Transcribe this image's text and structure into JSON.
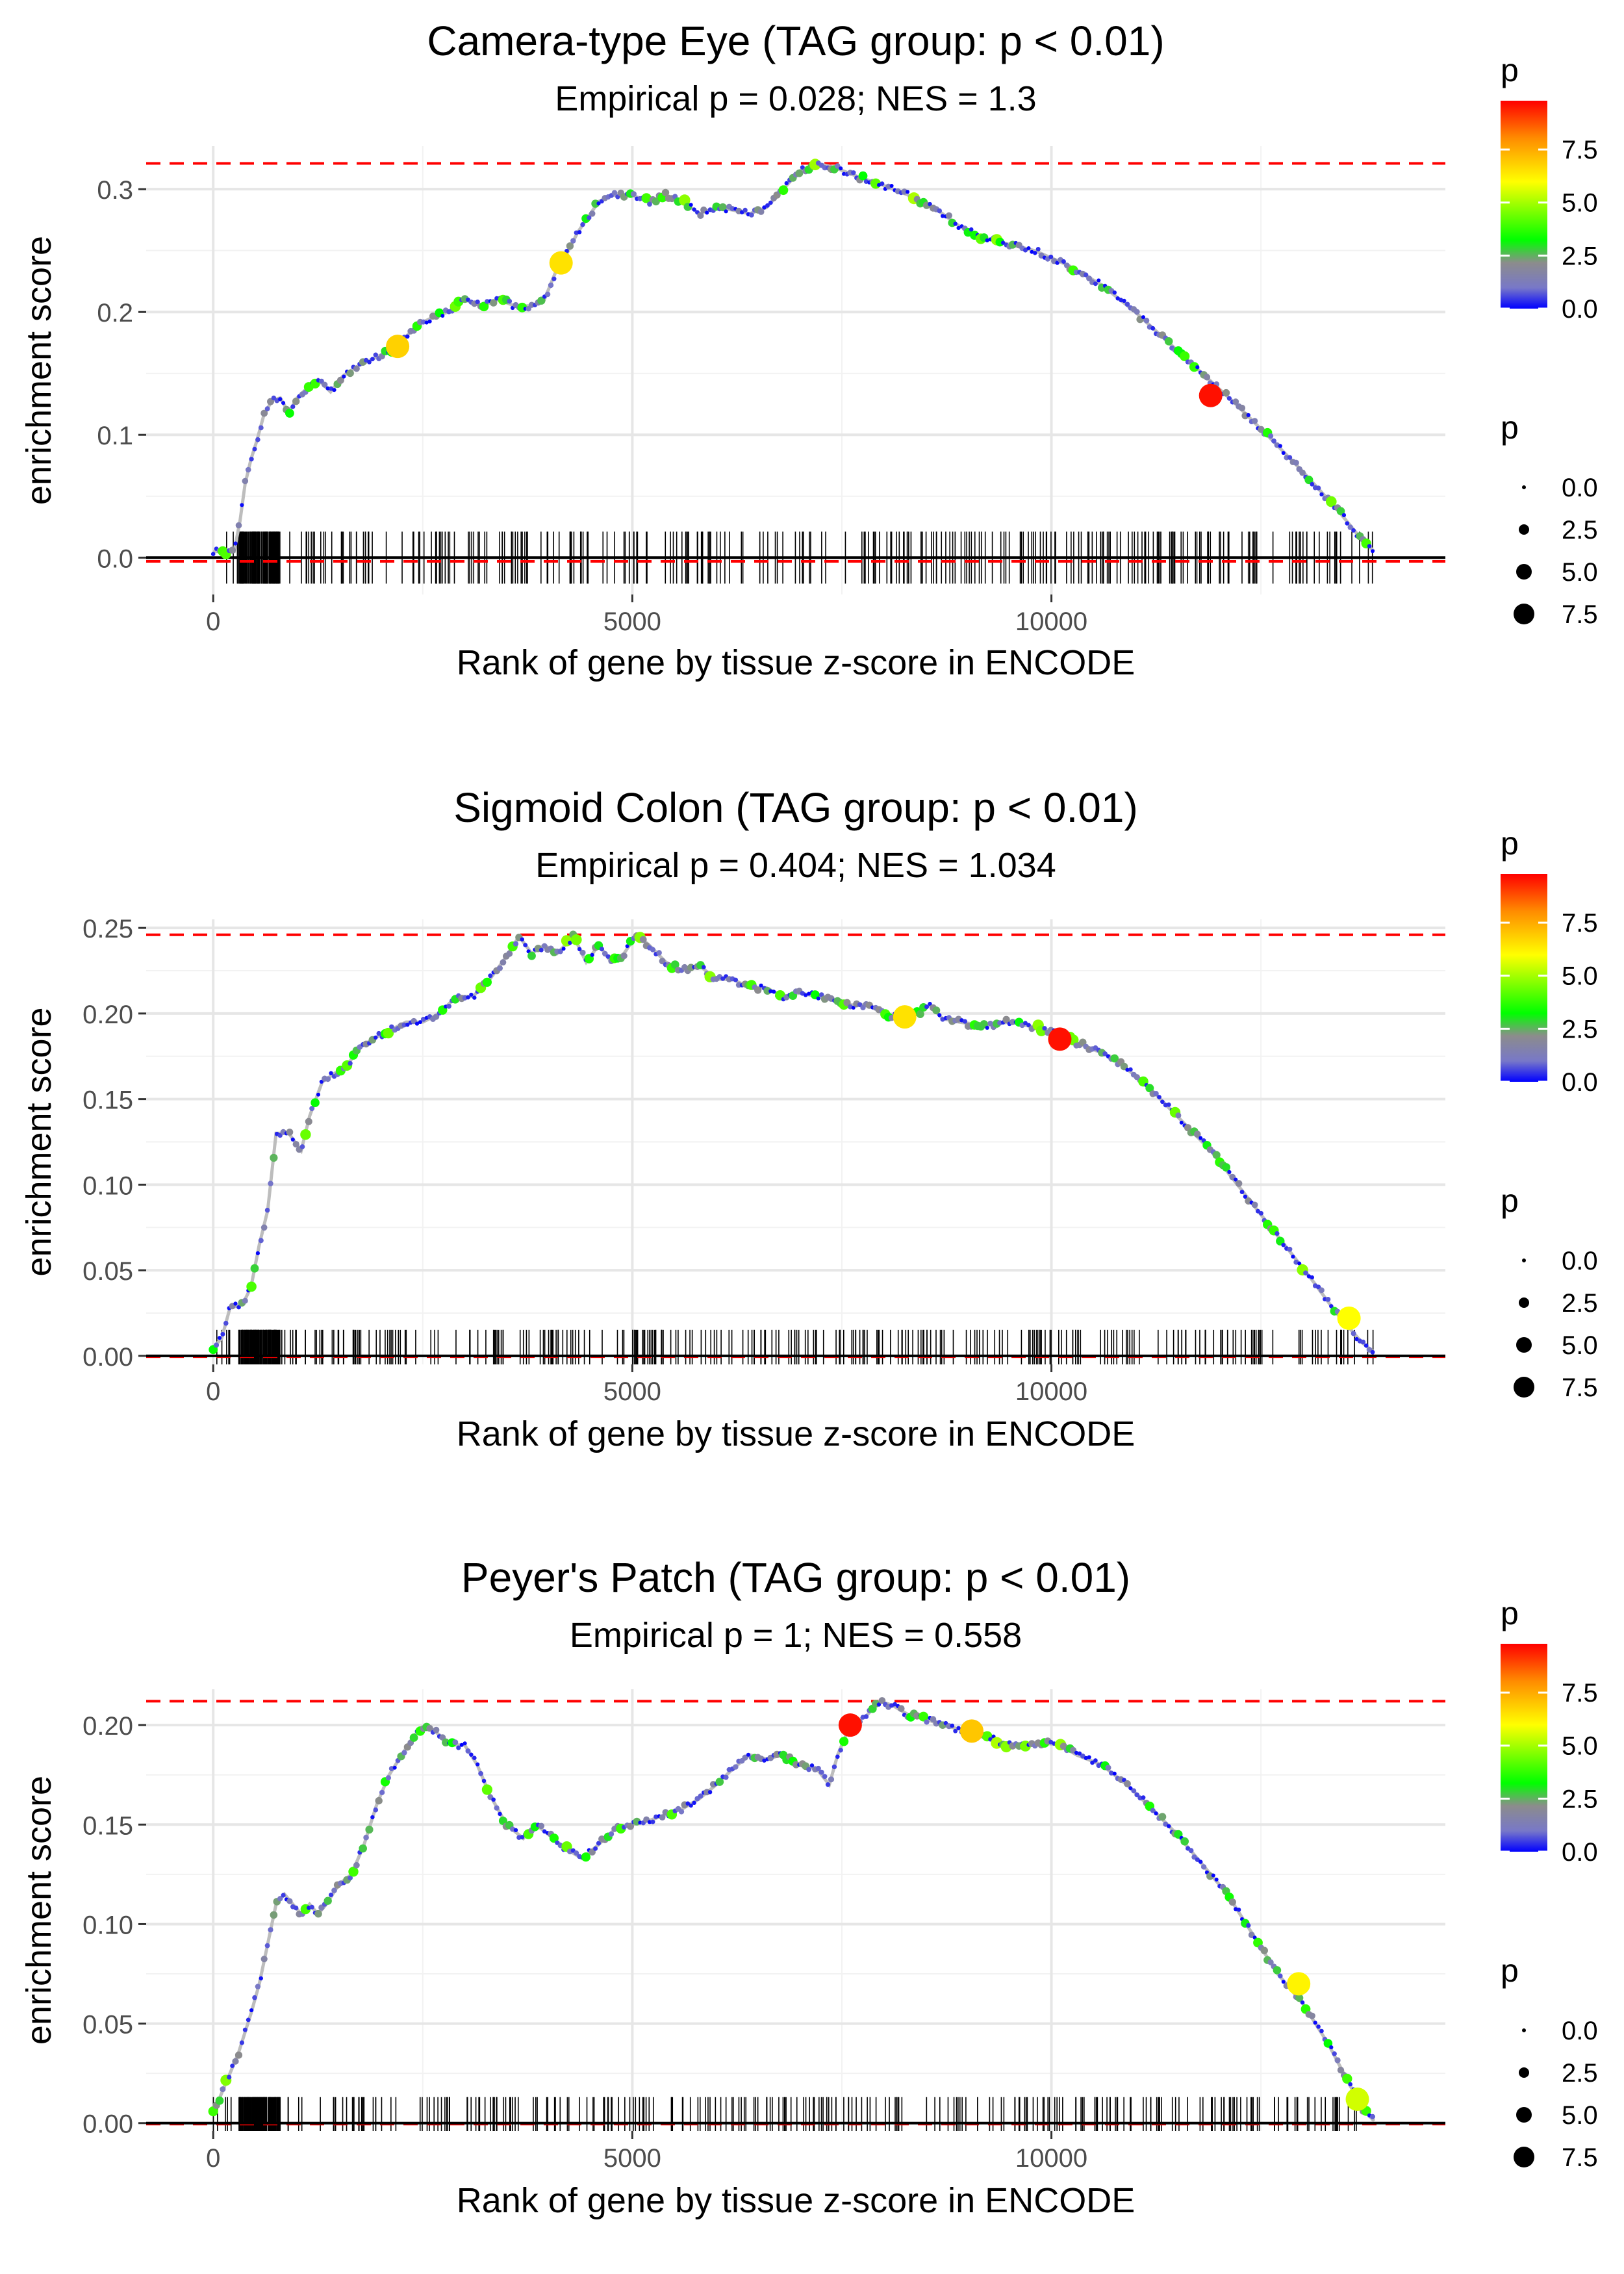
{
  "chart_data": [
    {
      "type": "line",
      "title": "Camera-type Eye (TAG group: p < 0.01)",
      "subtitle": "Empirical p = 0.028; NES = 1.3",
      "xlabel": "Rank of gene by tissue z-score in ENCODE",
      "ylabel": "enrichment score",
      "xlim": [
        -800,
        14700
      ],
      "ylim": [
        -0.03,
        0.335
      ],
      "xticks": [
        0,
        5000,
        10000
      ],
      "xtick_labels": [
        "0",
        "5000",
        "10000"
      ],
      "yticks": [
        0,
        0.1,
        0.2,
        0.3
      ],
      "ytick_labels": [
        "0.0",
        "0.1",
        "0.2",
        "0.3"
      ],
      "max_es": 0.321,
      "min_es": -0.003,
      "n_genes": 13850,
      "curve": [
        [
          0,
          0.005
        ],
        [
          250,
          0.005
        ],
        [
          320,
          0.03
        ],
        [
          380,
          0.06
        ],
        [
          450,
          0.08
        ],
        [
          520,
          0.095
        ],
        [
          600,
          0.115
        ],
        [
          700,
          0.128
        ],
        [
          800,
          0.13
        ],
        [
          900,
          0.118
        ],
        [
          1000,
          0.13
        ],
        [
          1150,
          0.14
        ],
        [
          1250,
          0.145
        ],
        [
          1400,
          0.135
        ],
        [
          1550,
          0.148
        ],
        [
          1700,
          0.155
        ],
        [
          1850,
          0.16
        ],
        [
          2000,
          0.165
        ],
        [
          2150,
          0.17
        ],
        [
          2300,
          0.18
        ],
        [
          2450,
          0.19
        ],
        [
          2600,
          0.195
        ],
        [
          2800,
          0.2
        ],
        [
          3000,
          0.21
        ],
        [
          3200,
          0.205
        ],
        [
          3400,
          0.21
        ],
        [
          3600,
          0.205
        ],
        [
          3800,
          0.205
        ],
        [
          3950,
          0.21
        ],
        [
          4100,
          0.235
        ],
        [
          4200,
          0.245
        ],
        [
          4350,
          0.265
        ],
        [
          4500,
          0.28
        ],
        [
          4600,
          0.29
        ],
        [
          4750,
          0.295
        ],
        [
          5000,
          0.295
        ],
        [
          5200,
          0.29
        ],
        [
          5400,
          0.295
        ],
        [
          5600,
          0.29
        ],
        [
          5800,
          0.28
        ],
        [
          6000,
          0.285
        ],
        [
          6200,
          0.283
        ],
        [
          6400,
          0.28
        ],
        [
          6600,
          0.285
        ],
        [
          6800,
          0.3
        ],
        [
          7000,
          0.315
        ],
        [
          7200,
          0.321
        ],
        [
          7400,
          0.318
        ],
        [
          7700,
          0.31
        ],
        [
          8000,
          0.303
        ],
        [
          8300,
          0.295
        ],
        [
          8600,
          0.285
        ],
        [
          8900,
          0.27
        ],
        [
          9200,
          0.26
        ],
        [
          9500,
          0.255
        ],
        [
          9800,
          0.25
        ],
        [
          10200,
          0.238
        ],
        [
          10600,
          0.222
        ],
        [
          11000,
          0.2
        ],
        [
          11400,
          0.175
        ],
        [
          11800,
          0.15
        ],
        [
          12200,
          0.125
        ],
        [
          12600,
          0.098
        ],
        [
          13000,
          0.07
        ],
        [
          13400,
          0.04
        ],
        [
          13700,
          0.015
        ],
        [
          13850,
          0.005
        ]
      ],
      "highlight_points": [
        {
          "x": 2200,
          "y": 0.172,
          "p": 6.8
        },
        {
          "x": 4150,
          "y": 0.24,
          "p": 6.5
        },
        {
          "x": 11900,
          "y": 0.132,
          "p": 9.6
        }
      ],
      "color_legend": {
        "title": "p",
        "ticks": [
          "0.0",
          "2.5",
          "5.0",
          "7.5"
        ],
        "tick_values": [
          0,
          2.5,
          5,
          7.5
        ],
        "max": 9.8
      },
      "size_legend": {
        "title": "p",
        "labels": [
          "0.0",
          "2.5",
          "5.0",
          "7.5"
        ]
      },
      "rug_seed": 11
    },
    {
      "type": "line",
      "title": "Sigmoid Colon (TAG group: p < 0.01)",
      "subtitle": "Empirical p = 0.404; NES = 1.034",
      "xlabel": "Rank of gene by tissue z-score in ENCODE",
      "ylabel": "enrichment score",
      "xlim": [
        -800,
        14700
      ],
      "ylim": [
        -0.005,
        0.255
      ],
      "xticks": [
        0,
        5000,
        10000
      ],
      "xtick_labels": [
        "0",
        "5000",
        "10000"
      ],
      "yticks": [
        0,
        0.05,
        0.1,
        0.15,
        0.2,
        0.25
      ],
      "ytick_labels": [
        "0.00",
        "0.05",
        "0.10",
        "0.15",
        "0.20",
        "0.25"
      ],
      "max_es": 0.246,
      "min_es": -0.0005,
      "n_genes": 13850,
      "curve": [
        [
          0,
          0.005
        ],
        [
          100,
          0.01
        ],
        [
          200,
          0.028
        ],
        [
          350,
          0.03
        ],
        [
          450,
          0.04
        ],
        [
          550,
          0.065
        ],
        [
          650,
          0.085
        ],
        [
          750,
          0.13
        ],
        [
          900,
          0.13
        ],
        [
          1050,
          0.12
        ],
        [
          1150,
          0.14
        ],
        [
          1300,
          0.16
        ],
        [
          1450,
          0.165
        ],
        [
          1600,
          0.17
        ],
        [
          1750,
          0.18
        ],
        [
          1900,
          0.185
        ],
        [
          2100,
          0.19
        ],
        [
          2300,
          0.195
        ],
        [
          2500,
          0.195
        ],
        [
          2700,
          0.2
        ],
        [
          2900,
          0.21
        ],
        [
          3100,
          0.21
        ],
        [
          3300,
          0.22
        ],
        [
          3450,
          0.23
        ],
        [
          3650,
          0.245
        ],
        [
          3800,
          0.235
        ],
        [
          3950,
          0.24
        ],
        [
          4100,
          0.235
        ],
        [
          4300,
          0.245
        ],
        [
          4450,
          0.23
        ],
        [
          4600,
          0.24
        ],
        [
          4750,
          0.23
        ],
        [
          4900,
          0.235
        ],
        [
          5050,
          0.246
        ],
        [
          5200,
          0.24
        ],
        [
          5400,
          0.23
        ],
        [
          5600,
          0.225
        ],
        [
          5800,
          0.228
        ],
        [
          6000,
          0.22
        ],
        [
          6200,
          0.22
        ],
        [
          6400,
          0.215
        ],
        [
          6600,
          0.215
        ],
        [
          6800,
          0.21
        ],
        [
          7000,
          0.212
        ],
        [
          7200,
          0.21
        ],
        [
          7400,
          0.208
        ],
        [
          7600,
          0.205
        ],
        [
          7800,
          0.205
        ],
        [
          8000,
          0.2
        ],
        [
          8200,
          0.198
        ],
        [
          8400,
          0.2
        ],
        [
          8550,
          0.205
        ],
        [
          8700,
          0.197
        ],
        [
          8900,
          0.195
        ],
        [
          9200,
          0.193
        ],
        [
          9500,
          0.195
        ],
        [
          9800,
          0.192
        ],
        [
          10000,
          0.19
        ],
        [
          10300,
          0.183
        ],
        [
          10700,
          0.175
        ],
        [
          11100,
          0.16
        ],
        [
          11500,
          0.14
        ],
        [
          11900,
          0.12
        ],
        [
          12300,
          0.095
        ],
        [
          12700,
          0.07
        ],
        [
          13100,
          0.045
        ],
        [
          13400,
          0.025
        ],
        [
          13700,
          0.008
        ],
        [
          13850,
          0.002
        ]
      ],
      "highlight_points": [
        {
          "x": 8250,
          "y": 0.198,
          "p": 6.5
        },
        {
          "x": 10100,
          "y": 0.185,
          "p": 9.6
        },
        {
          "x": 13550,
          "y": 0.022,
          "p": 6.0
        }
      ],
      "color_legend": {
        "title": "p",
        "ticks": [
          "0.0",
          "2.5",
          "5.0",
          "7.5"
        ],
        "tick_values": [
          0,
          2.5,
          5,
          7.5
        ],
        "max": 9.8
      },
      "size_legend": {
        "title": "p",
        "labels": [
          "0.0",
          "2.5",
          "5.0",
          "7.5"
        ]
      },
      "rug_seed": 23
    },
    {
      "type": "line",
      "title": "Peyer's Patch (TAG group: p < 0.01)",
      "subtitle": "Empirical p = 1; NES = 0.558",
      "xlabel": "Rank of gene by tissue z-score in ENCODE",
      "ylabel": "enrichment score",
      "xlim": [
        -800,
        14700
      ],
      "ylim": [
        -0.004,
        0.218
      ],
      "xticks": [
        0,
        5000,
        10000
      ],
      "xtick_labels": [
        "0",
        "5000",
        "10000"
      ],
      "yticks": [
        0,
        0.05,
        0.1,
        0.15,
        0.2
      ],
      "ytick_labels": [
        "0.00",
        "0.05",
        "0.10",
        "0.15",
        "0.20"
      ],
      "max_es": 0.212,
      "min_es": -0.0005,
      "n_genes": 13850,
      "curve": [
        [
          0,
          0.005
        ],
        [
          150,
          0.02
        ],
        [
          300,
          0.035
        ],
        [
          450,
          0.055
        ],
        [
          550,
          0.07
        ],
        [
          650,
          0.09
        ],
        [
          750,
          0.11
        ],
        [
          850,
          0.115
        ],
        [
          950,
          0.11
        ],
        [
          1050,
          0.105
        ],
        [
          1150,
          0.11
        ],
        [
          1250,
          0.105
        ],
        [
          1350,
          0.11
        ],
        [
          1500,
          0.12
        ],
        [
          1650,
          0.125
        ],
        [
          1800,
          0.14
        ],
        [
          1950,
          0.16
        ],
        [
          2100,
          0.175
        ],
        [
          2250,
          0.185
        ],
        [
          2400,
          0.195
        ],
        [
          2550,
          0.2
        ],
        [
          2700,
          0.195
        ],
        [
          2850,
          0.19
        ],
        [
          3000,
          0.19
        ],
        [
          3150,
          0.18
        ],
        [
          3300,
          0.165
        ],
        [
          3500,
          0.15
        ],
        [
          3700,
          0.143
        ],
        [
          3850,
          0.15
        ],
        [
          4000,
          0.145
        ],
        [
          4200,
          0.138
        ],
        [
          4400,
          0.133
        ],
        [
          4600,
          0.14
        ],
        [
          4800,
          0.148
        ],
        [
          5000,
          0.15
        ],
        [
          5200,
          0.152
        ],
        [
          5400,
          0.155
        ],
        [
          5600,
          0.158
        ],
        [
          5800,
          0.163
        ],
        [
          6000,
          0.17
        ],
        [
          6200,
          0.178
        ],
        [
          6400,
          0.185
        ],
        [
          6600,
          0.183
        ],
        [
          6800,
          0.185
        ],
        [
          7000,
          0.18
        ],
        [
          7200,
          0.178
        ],
        [
          7350,
          0.17
        ],
        [
          7450,
          0.185
        ],
        [
          7600,
          0.2
        ],
        [
          7800,
          0.205
        ],
        [
          7950,
          0.212
        ],
        [
          8100,
          0.21
        ],
        [
          8300,
          0.205
        ],
        [
          8500,
          0.203
        ],
        [
          8700,
          0.2
        ],
        [
          8900,
          0.198
        ],
        [
          9100,
          0.196
        ],
        [
          9300,
          0.193
        ],
        [
          9500,
          0.19
        ],
        [
          9700,
          0.19
        ],
        [
          9900,
          0.191
        ],
        [
          10100,
          0.19
        ],
        [
          10300,
          0.185
        ],
        [
          10600,
          0.18
        ],
        [
          10900,
          0.17
        ],
        [
          11200,
          0.158
        ],
        [
          11500,
          0.145
        ],
        [
          11800,
          0.13
        ],
        [
          12100,
          0.115
        ],
        [
          12400,
          0.095
        ],
        [
          12700,
          0.075
        ],
        [
          13000,
          0.06
        ],
        [
          13300,
          0.04
        ],
        [
          13550,
          0.02
        ],
        [
          13700,
          0.008
        ],
        [
          13850,
          0.001
        ]
      ],
      "highlight_points": [
        {
          "x": 7600,
          "y": 0.2,
          "p": 9.6
        },
        {
          "x": 9050,
          "y": 0.197,
          "p": 7.0
        },
        {
          "x": 12950,
          "y": 0.07,
          "p": 6.2
        },
        {
          "x": 13650,
          "y": 0.012,
          "p": 5.5
        }
      ],
      "color_legend": {
        "title": "p",
        "ticks": [
          "0.0",
          "2.5",
          "5.0",
          "7.5"
        ],
        "tick_values": [
          0,
          2.5,
          5,
          7.5
        ],
        "max": 9.8
      },
      "size_legend": {
        "title": "p",
        "labels": [
          "0.0",
          "2.5",
          "5.0",
          "7.5"
        ]
      },
      "rug_seed": 37
    }
  ]
}
